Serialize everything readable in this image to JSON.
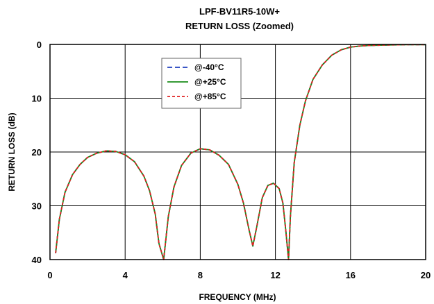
{
  "chart_data": {
    "type": "line",
    "title": "LPF-BV11R5-10W+",
    "subtitle": "RETURN LOSS (Zoomed)",
    "xlabel": "FREQUENCY (MHz)",
    "ylabel": "RETURN LOSS (dB)",
    "xlim": [
      0,
      20
    ],
    "ylim": [
      0,
      40
    ],
    "y_inverted": true,
    "x_ticks": [
      0,
      4,
      8,
      12,
      16,
      20
    ],
    "y_ticks": [
      0,
      10,
      20,
      30,
      40
    ],
    "x_tick_labels": [
      "0",
      "4",
      "8",
      "12",
      "16",
      "20"
    ],
    "y_tick_labels": [
      "0",
      "10",
      "20",
      "30",
      "40"
    ],
    "grid": true,
    "legend_position": "top-center",
    "series": [
      {
        "name": "@-40°C",
        "color": "#1f3fbf",
        "dash": "dashed",
        "x": [
          0.3,
          0.5,
          0.8,
          1.2,
          1.6,
          2.0,
          2.5,
          3.0,
          3.5,
          4.0,
          4.5,
          5.0,
          5.3,
          5.6,
          5.8,
          6.05,
          6.3,
          6.6,
          7.0,
          7.5,
          8.0,
          8.5,
          9.0,
          9.5,
          10.0,
          10.3,
          10.6,
          10.8,
          11.0,
          11.3,
          11.6,
          11.9,
          12.2,
          12.4,
          12.55,
          12.7,
          12.8,
          13.0,
          13.3,
          13.6,
          14.0,
          14.5,
          15.0,
          15.5,
          16.0,
          16.5,
          17.0,
          18.0,
          19.0,
          20.0
        ],
        "values": [
          38.8,
          32.5,
          27.5,
          24.2,
          22.3,
          21.0,
          20.2,
          19.8,
          19.9,
          20.5,
          21.8,
          24.5,
          27.2,
          31.5,
          37.0,
          40.0,
          32.0,
          26.5,
          22.5,
          20.2,
          19.4,
          19.6,
          20.6,
          22.3,
          26.0,
          29.5,
          34.5,
          37.5,
          34.0,
          28.5,
          26.2,
          25.8,
          26.8,
          29.5,
          34.5,
          40.0,
          32.0,
          22.0,
          15.0,
          10.5,
          6.5,
          3.8,
          2.0,
          1.0,
          0.5,
          0.3,
          0.2,
          0.1,
          0.05,
          0.05
        ]
      },
      {
        "name": "@+25°C",
        "color": "#1a8c1a",
        "dash": "solid",
        "x": [
          0.3,
          0.5,
          0.8,
          1.2,
          1.6,
          2.0,
          2.5,
          3.0,
          3.5,
          4.0,
          4.5,
          5.0,
          5.3,
          5.6,
          5.8,
          6.05,
          6.3,
          6.6,
          7.0,
          7.5,
          8.0,
          8.5,
          9.0,
          9.5,
          10.0,
          10.3,
          10.6,
          10.8,
          11.0,
          11.3,
          11.6,
          11.9,
          12.2,
          12.4,
          12.55,
          12.7,
          12.8,
          13.0,
          13.3,
          13.6,
          14.0,
          14.5,
          15.0,
          15.5,
          16.0,
          16.5,
          17.0,
          18.0,
          19.0,
          20.0
        ],
        "values": [
          38.8,
          32.5,
          27.5,
          24.2,
          22.3,
          21.0,
          20.2,
          19.8,
          19.9,
          20.5,
          21.8,
          24.5,
          27.2,
          31.5,
          37.0,
          40.0,
          32.0,
          26.5,
          22.5,
          20.2,
          19.4,
          19.6,
          20.6,
          22.3,
          26.0,
          29.5,
          34.5,
          37.5,
          34.0,
          28.5,
          26.2,
          25.8,
          26.8,
          29.5,
          34.5,
          40.0,
          32.0,
          22.0,
          15.0,
          10.5,
          6.5,
          3.8,
          2.0,
          1.0,
          0.5,
          0.3,
          0.2,
          0.1,
          0.05,
          0.05
        ]
      },
      {
        "name": "@+85°C",
        "color": "#e02020",
        "dash": "dotted",
        "x": [
          0.3,
          0.5,
          0.8,
          1.2,
          1.6,
          2.0,
          2.5,
          3.0,
          3.5,
          4.0,
          4.5,
          5.0,
          5.3,
          5.6,
          5.8,
          6.05,
          6.3,
          6.6,
          7.0,
          7.5,
          8.0,
          8.5,
          9.0,
          9.5,
          10.0,
          10.3,
          10.6,
          10.8,
          11.0,
          11.3,
          11.6,
          11.9,
          12.2,
          12.4,
          12.55,
          12.7,
          12.8,
          13.0,
          13.3,
          13.6,
          14.0,
          14.5,
          15.0,
          15.5,
          16.0,
          16.5,
          17.0,
          18.0,
          19.0,
          20.0
        ],
        "values": [
          38.8,
          32.5,
          27.5,
          24.2,
          22.3,
          21.0,
          20.2,
          19.8,
          19.9,
          20.5,
          21.8,
          24.5,
          27.2,
          31.5,
          37.0,
          40.0,
          32.0,
          26.5,
          22.5,
          20.2,
          19.4,
          19.6,
          20.6,
          22.3,
          26.0,
          29.5,
          34.5,
          37.5,
          34.0,
          28.5,
          26.2,
          25.8,
          26.8,
          29.5,
          34.5,
          40.0,
          32.0,
          22.0,
          15.0,
          10.5,
          6.5,
          3.8,
          2.0,
          1.0,
          0.5,
          0.3,
          0.2,
          0.1,
          0.05,
          0.05
        ]
      }
    ]
  }
}
